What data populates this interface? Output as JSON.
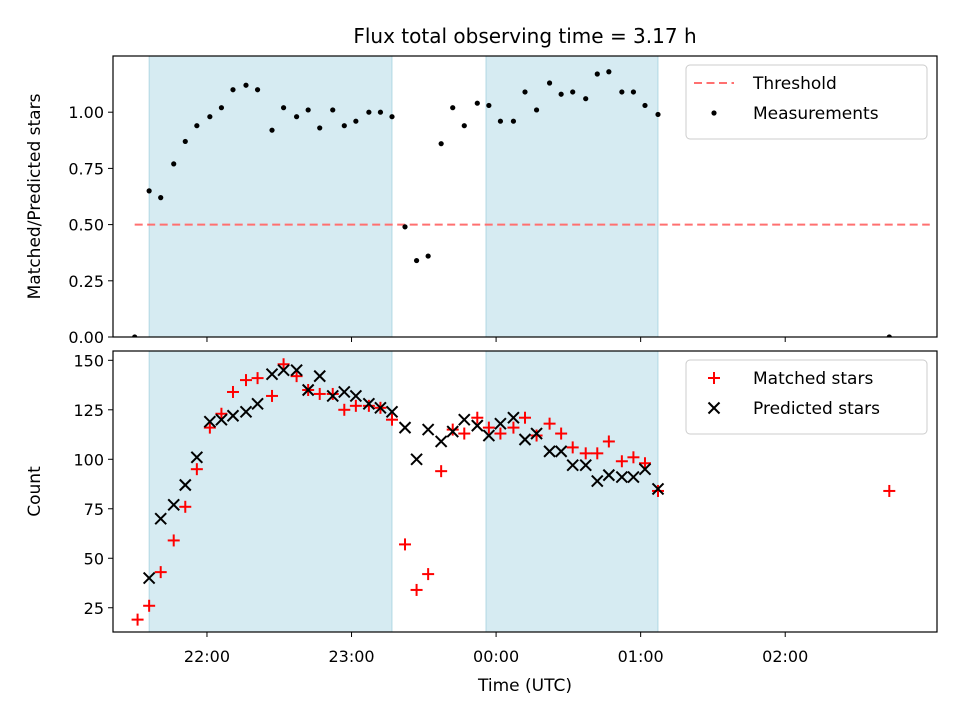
{
  "figure": {
    "title": "Flux total observing time = 3.17 h",
    "xlabel": "Time (UTC)",
    "x_tick_labels": [
      "22:00",
      "23:00",
      "00:00",
      "01:00",
      "02:00"
    ],
    "x_ticks": [
      22.0,
      23.0,
      24.0,
      25.0,
      26.0
    ],
    "xlim": [
      21.35,
      27.05
    ]
  },
  "chart_data": [
    {
      "type": "scatter",
      "title": "Flux total observing time = 3.17 h",
      "xlabel": "",
      "ylabel": "Matched/Predicted stars",
      "x_unit": "hours UTC (values above 24 are after midnight)",
      "ylim": [
        0.0,
        1.25
      ],
      "y_ticks": [
        0.0,
        0.25,
        0.5,
        0.75,
        1.0
      ],
      "y_tick_labels": [
        "0.00",
        "0.25",
        "0.50",
        "0.75",
        "1.00"
      ],
      "grid": false,
      "legend_position": "top-right",
      "shaded_intervals": [
        [
          21.6,
          23.28
        ],
        [
          23.93,
          25.12
        ]
      ],
      "shade_color": "#add8e6",
      "series": [
        {
          "name": "Threshold",
          "kind": "dashed-line",
          "color": "#ff7070",
          "x": [
            21.5,
            27.0
          ],
          "y": [
            0.5,
            0.5
          ]
        },
        {
          "name": "Measurements",
          "kind": "dot",
          "color": "#000000",
          "x": [
            21.5,
            21.6,
            21.68,
            21.77,
            21.85,
            21.93,
            22.02,
            22.1,
            22.18,
            22.27,
            22.35,
            22.45,
            22.53,
            22.62,
            22.7,
            22.78,
            22.87,
            22.95,
            23.03,
            23.12,
            23.2,
            23.28,
            23.37,
            23.45,
            23.53,
            23.62,
            23.7,
            23.78,
            23.87,
            23.95,
            24.03,
            24.12,
            24.2,
            24.28,
            24.37,
            24.45,
            24.53,
            24.62,
            24.7,
            24.78,
            24.87,
            24.95,
            25.03,
            25.12,
            26.72
          ],
          "y": [
            0.0,
            0.65,
            0.62,
            0.77,
            0.87,
            0.94,
            0.98,
            1.02,
            1.1,
            1.12,
            1.1,
            0.92,
            1.02,
            0.98,
            1.01,
            0.93,
            1.01,
            0.94,
            0.96,
            1.0,
            1.0,
            0.98,
            0.49,
            0.34,
            0.36,
            0.86,
            1.02,
            0.94,
            1.04,
            1.03,
            0.96,
            0.96,
            1.09,
            1.01,
            1.13,
            1.08,
            1.09,
            1.06,
            1.17,
            1.18,
            1.09,
            1.09,
            1.03,
            0.99,
            0.0
          ]
        }
      ]
    },
    {
      "type": "scatter",
      "title": "",
      "xlabel": "Time (UTC)",
      "ylabel": "Count",
      "x_unit": "hours UTC (values above 24 are after midnight)",
      "ylim": [
        12.75,
        154.7
      ],
      "y_ticks": [
        25,
        50,
        75,
        100,
        125,
        150
      ],
      "y_tick_labels": [
        "25",
        "50",
        "75",
        "100",
        "125",
        "150"
      ],
      "grid": false,
      "legend_position": "top-right",
      "shaded_intervals": [
        [
          21.6,
          23.28
        ],
        [
          23.93,
          25.12
        ]
      ],
      "shade_color": "#add8e6",
      "series": [
        {
          "name": "Matched stars",
          "kind": "plus",
          "color": "#ff0000",
          "x": [
            21.52,
            21.6,
            21.68,
            21.77,
            21.85,
            21.93,
            22.02,
            22.1,
            22.18,
            22.27,
            22.35,
            22.45,
            22.53,
            22.62,
            22.7,
            22.78,
            22.87,
            22.95,
            23.03,
            23.12,
            23.2,
            23.28,
            23.37,
            23.45,
            23.53,
            23.62,
            23.7,
            23.78,
            23.87,
            23.95,
            24.03,
            24.12,
            24.2,
            24.28,
            24.37,
            24.45,
            24.53,
            24.62,
            24.7,
            24.78,
            24.87,
            24.95,
            25.03,
            25.12,
            26.72
          ],
          "y": [
            19,
            26,
            43,
            59,
            76,
            95,
            116,
            123,
            134,
            140,
            141,
            132,
            148,
            142,
            135,
            133,
            133,
            125,
            127,
            127,
            126,
            120,
            57,
            34,
            42,
            94,
            115,
            113,
            121,
            116,
            113,
            116,
            121,
            112,
            118,
            113,
            106,
            103,
            103,
            109,
            99,
            101,
            98,
            84,
            84
          ]
        },
        {
          "name": "Predicted stars",
          "kind": "x",
          "color": "#000000",
          "x": [
            21.6,
            21.68,
            21.77,
            21.85,
            21.93,
            22.02,
            22.1,
            22.18,
            22.27,
            22.35,
            22.45,
            22.53,
            22.62,
            22.7,
            22.78,
            22.87,
            22.95,
            23.03,
            23.12,
            23.2,
            23.28,
            23.37,
            23.45,
            23.53,
            23.62,
            23.7,
            23.78,
            23.87,
            23.95,
            24.03,
            24.12,
            24.2,
            24.28,
            24.37,
            24.45,
            24.53,
            24.62,
            24.7,
            24.78,
            24.87,
            24.95,
            25.03,
            25.12
          ],
          "y": [
            40,
            70,
            77,
            87,
            101,
            119,
            120,
            122,
            124,
            128,
            143,
            145,
            145,
            135,
            142,
            132,
            134,
            132,
            128,
            126,
            124,
            116,
            100,
            115,
            109,
            114,
            120,
            117,
            112,
            118,
            121,
            110,
            113,
            104,
            104,
            97,
            97,
            89,
            92,
            91,
            91,
            95,
            85
          ]
        }
      ]
    }
  ]
}
